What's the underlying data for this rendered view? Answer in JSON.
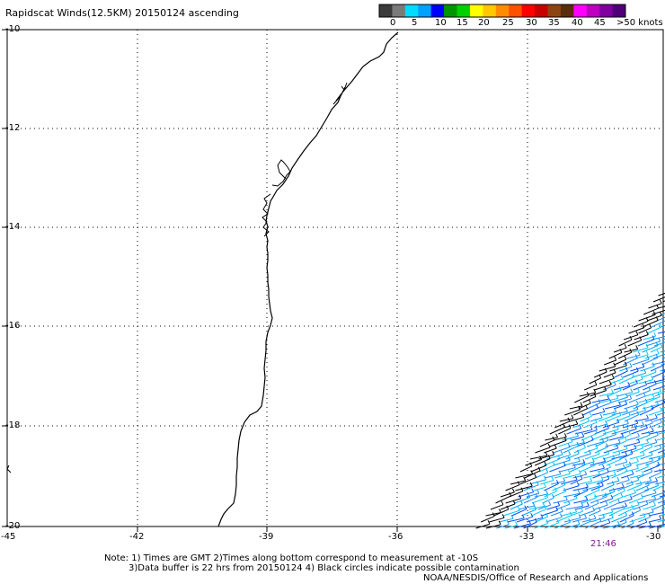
{
  "header": {
    "title": "Rapidscat Winds(12.5KM) 20150124 ascending"
  },
  "legend": {
    "labels": [
      "0",
      "5",
      "10",
      "15",
      "20",
      "25",
      "30",
      "35",
      "40",
      "45",
      ">50 knots"
    ],
    "colors": [
      "#3a3a3a",
      "#7a7a7a",
      "#00dcff",
      "#00a0ff",
      "#0000ff",
      "#009600",
      "#00d000",
      "#ffff00",
      "#ffc800",
      "#ff8c00",
      "#ff5000",
      "#ff0000",
      "#c80000",
      "#8b4513",
      "#5a2d0c",
      "#ff00ff",
      "#c000c0",
      "#8000a0",
      "#500078"
    ]
  },
  "map": {
    "lat_labels": [
      "-10",
      "-12",
      "-14",
      "-16",
      "-18",
      "-20"
    ],
    "lon_labels": [
      "-45",
      "-42",
      "-39",
      "-36",
      "-33",
      "-30"
    ],
    "grid_color": "#000000",
    "coast_color": "#000000",
    "wind_colors": [
      "#00c8ff",
      "#1e8cff",
      "#0050ff",
      "#00a0ff",
      "#000000"
    ],
    "pass_time": "21:46"
  },
  "notes": {
    "line1": "Note: 1) Times are GMT 2)Times along bottom correspond to measurement at -10S",
    "line2": "3)Data buffer is 22 hrs from 20150124 4) Black circles indicate possible contamination",
    "line3": "NOAA/NESDIS/Office of Research and Applications"
  }
}
